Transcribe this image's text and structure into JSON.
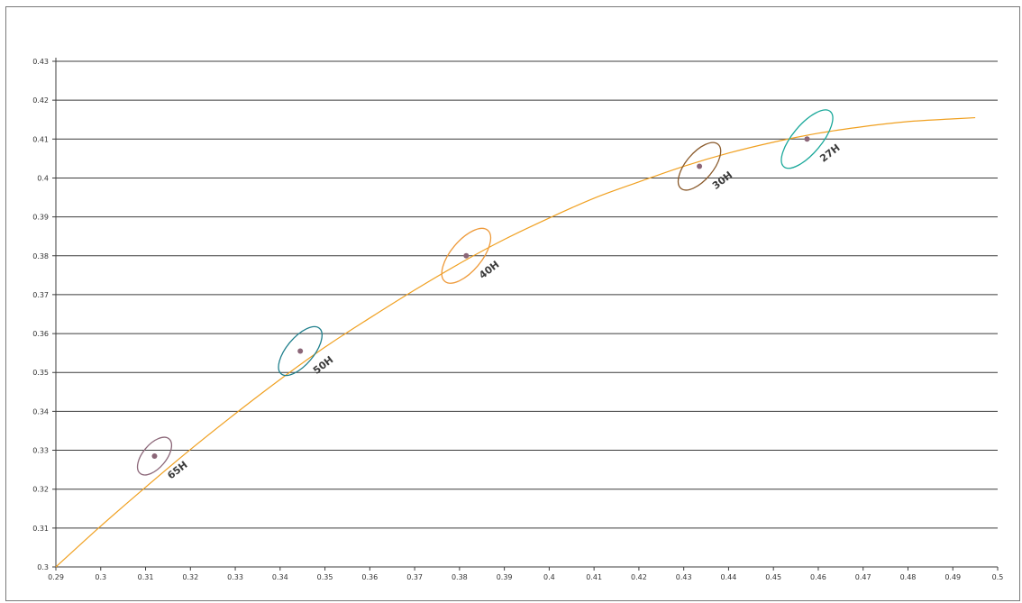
{
  "chart_data": {
    "type": "scatter",
    "title": "",
    "xlabel": "",
    "ylabel": "",
    "xlim": [
      0.29,
      0.5
    ],
    "ylim": [
      0.3,
      0.43
    ],
    "x_ticks": [
      "0.29",
      "0.3",
      "0.31",
      "0.32",
      "0.33",
      "0.34",
      "0.35",
      "0.36",
      "0.37",
      "0.38",
      "0.39",
      "0.4",
      "0.41",
      "0.42",
      "0.43",
      "0.44",
      "0.45",
      "0.46",
      "0.47",
      "0.48",
      "0.49",
      "0.5"
    ],
    "y_ticks": [
      "0.3",
      "0.31",
      "0.32",
      "0.33",
      "0.34",
      "0.35",
      "0.36",
      "0.37",
      "0.38",
      "0.39",
      "0.4",
      "0.41",
      "0.42",
      "0.43"
    ],
    "grid": "horizontal",
    "points": [
      {
        "label": "65H",
        "x": 0.312,
        "y": 0.3285,
        "ellipse_color": "#8b6678",
        "dot_color": "#8b6678"
      },
      {
        "label": "50H",
        "x": 0.3445,
        "y": 0.3555,
        "ellipse_color": "#1f7f8c",
        "dot_color": "#8b6678"
      },
      {
        "label": "40H",
        "x": 0.3815,
        "y": 0.38,
        "ellipse_color": "#ee9a3a",
        "dot_color": "#8b6678"
      },
      {
        "label": "30H",
        "x": 0.4335,
        "y": 0.403,
        "ellipse_color": "#8a5a2b",
        "dot_color": "#8b6678"
      },
      {
        "label": "27H",
        "x": 0.4575,
        "y": 0.41,
        "ellipse_color": "#1aa89a",
        "dot_color": "#8b6678"
      }
    ],
    "curve": {
      "color": "#f0a020",
      "x": [
        0.29,
        0.3,
        0.31,
        0.32,
        0.33,
        0.34,
        0.35,
        0.36,
        0.37,
        0.38,
        0.39,
        0.4,
        0.41,
        0.42,
        0.43,
        0.44,
        0.45,
        0.46,
        0.47,
        0.48,
        0.49,
        0.495
      ],
      "y": [
        0.3,
        0.3105,
        0.3205,
        0.3302,
        0.3394,
        0.3482,
        0.3565,
        0.364,
        0.3712,
        0.378,
        0.3842,
        0.3897,
        0.3948,
        0.399,
        0.403,
        0.4064,
        0.4092,
        0.4115,
        0.4132,
        0.4145,
        0.4152,
        0.4155
      ]
    }
  }
}
